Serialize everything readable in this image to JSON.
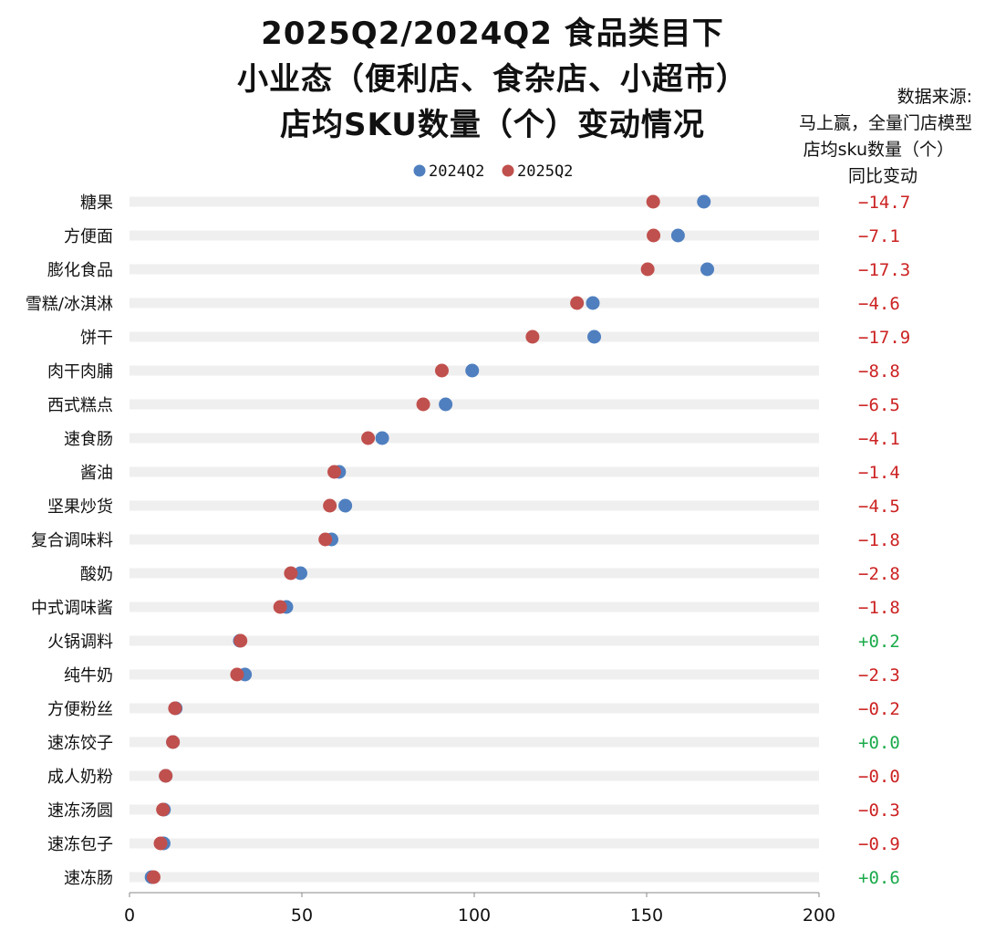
{
  "title_lines": [
    "2025Q2/2024Q2 食品类目下",
    "小业态（便利店、食杂店、小超市）",
    "店均SKU数量（个）变动情况"
  ],
  "note_lines": [
    "数据来源:",
    "马上赢，全量门店模型",
    "店均sku数量（个）",
    "同比变动"
  ],
  "colors": {
    "s2024": "#4f7fbf",
    "s2025": "#c0504d",
    "negative": "#cc2222",
    "positive": "#1aaa4a",
    "track": "#efefef"
  },
  "chart_data": {
    "type": "dumbbell",
    "xlim": [
      0,
      200
    ],
    "xticks": [
      0,
      50,
      100,
      150,
      200
    ],
    "legend": "top",
    "series": [
      {
        "name": "2024Q2",
        "color": "#4f7fbf"
      },
      {
        "name": "2025Q2",
        "color": "#c0504d"
      }
    ],
    "rows": [
      {
        "category": "糖果",
        "v2024": 166.6,
        "v2025": 151.9,
        "delta": "−14.7"
      },
      {
        "category": "方便面",
        "v2024": 159.1,
        "v2025": 152.0,
        "delta": "−7.1"
      },
      {
        "category": "膨化食品",
        "v2024": 167.6,
        "v2025": 150.3,
        "delta": "−17.3"
      },
      {
        "category": "雪糕/冰淇淋",
        "v2024": 134.4,
        "v2025": 129.8,
        "delta": "−4.6"
      },
      {
        "category": "饼干",
        "v2024": 134.8,
        "v2025": 116.9,
        "delta": "−17.9"
      },
      {
        "category": "肉干肉脯",
        "v2024": 99.4,
        "v2025": 90.6,
        "delta": "−8.8"
      },
      {
        "category": "西式糕点",
        "v2024": 91.7,
        "v2025": 85.2,
        "delta": "−6.5"
      },
      {
        "category": "速食肠",
        "v2024": 73.3,
        "v2025": 69.2,
        "delta": "−4.1"
      },
      {
        "category": "酱油",
        "v2024": 60.8,
        "v2025": 59.4,
        "delta": "−1.4"
      },
      {
        "category": "坚果炒货",
        "v2024": 62.6,
        "v2025": 58.1,
        "delta": "−4.5"
      },
      {
        "category": "复合调味料",
        "v2024": 58.6,
        "v2025": 56.8,
        "delta": "−1.8"
      },
      {
        "category": "酸奶",
        "v2024": 49.6,
        "v2025": 46.8,
        "delta": "−2.8"
      },
      {
        "category": "中式调味酱",
        "v2024": 45.5,
        "v2025": 43.7,
        "delta": "−1.8"
      },
      {
        "category": "火锅调料",
        "v2024": 32.0,
        "v2025": 32.2,
        "delta": "+0.2"
      },
      {
        "category": "纯牛奶",
        "v2024": 33.5,
        "v2025": 31.2,
        "delta": "−2.3"
      },
      {
        "category": "方便粉丝",
        "v2024": 13.4,
        "v2025": 13.2,
        "delta": "−0.2"
      },
      {
        "category": "速冻饺子",
        "v2024": 12.6,
        "v2025": 12.6,
        "delta": "+0.0"
      },
      {
        "category": "成人奶粉",
        "v2024": 10.5,
        "v2025": 10.5,
        "delta": "−0.0"
      },
      {
        "category": "速冻汤圆",
        "v2024": 10.0,
        "v2025": 9.7,
        "delta": "−0.3"
      },
      {
        "category": "速冻包子",
        "v2024": 9.9,
        "v2025": 9.0,
        "delta": "−0.9"
      },
      {
        "category": "速冻肠",
        "v2024": 6.4,
        "v2025": 7.0,
        "delta": "+0.6"
      }
    ]
  }
}
